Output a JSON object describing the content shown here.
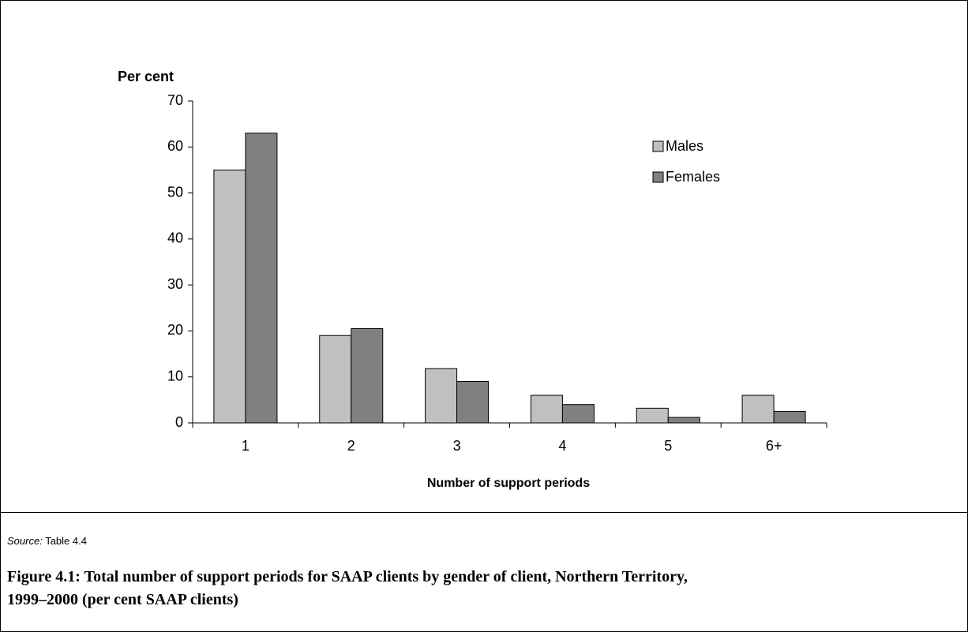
{
  "chart_data": {
    "type": "bar",
    "y_label": "Per cent",
    "x_label": "Number of support periods",
    "categories": [
      "1",
      "2",
      "3",
      "4",
      "5",
      "6+"
    ],
    "series": [
      {
        "name": "Males",
        "color": "#c0c0c0",
        "values": [
          55,
          19,
          11.8,
          6,
          3.2,
          6
        ]
      },
      {
        "name": "Females",
        "color": "#808080",
        "values": [
          63,
          20.5,
          9,
          4,
          1.2,
          2.5
        ]
      }
    ],
    "ylim": [
      0,
      70
    ],
    "yticks": [
      0,
      10,
      20,
      30,
      40,
      50,
      60,
      70
    ],
    "legend": "upper right"
  },
  "source_label": "Source:",
  "source_text": "Table 4.4",
  "caption": "Figure 4.1: Total number of support periods for SAAP clients by gender of client, Northern Territory, 1999–2000 (per cent SAAP clients)"
}
